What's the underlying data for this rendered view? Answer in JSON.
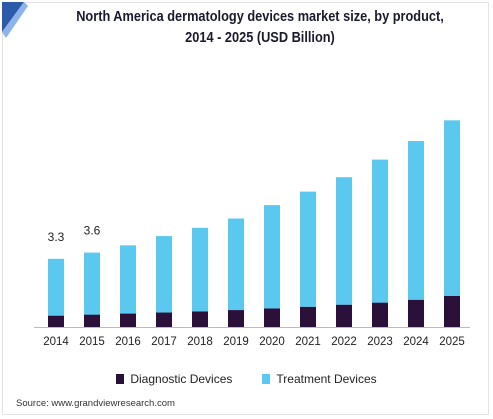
{
  "header": {
    "title_line1": "North America dermatology devices market size, by product,",
    "title_line2": "2014 - 2025 (USD Billion)"
  },
  "colors": {
    "diagnostic": "#2b1039",
    "treatment": "#5bc8ef",
    "accent_corner": "#2d5aa8"
  },
  "chart_data": {
    "type": "bar",
    "stacked": true,
    "categories": [
      "2014",
      "2015",
      "2016",
      "2017",
      "2018",
      "2019",
      "2020",
      "2021",
      "2022",
      "2023",
      "2024",
      "2025"
    ],
    "series": [
      {
        "name": "Diagnostic Devices",
        "values": [
          0.55,
          0.6,
          0.65,
          0.7,
          0.75,
          0.82,
          0.9,
          0.98,
          1.08,
          1.18,
          1.32,
          1.5
        ]
      },
      {
        "name": "Treatment Devices",
        "values": [
          2.75,
          3.0,
          3.3,
          3.7,
          4.05,
          4.43,
          5.0,
          5.57,
          6.17,
          6.92,
          7.68,
          8.5
        ]
      }
    ],
    "data_labels": [
      {
        "category": "2014",
        "text": "3.3"
      },
      {
        "category": "2015",
        "text": "3.6"
      }
    ],
    "ylim": [
      0,
      10.5
    ],
    "grid": false,
    "legend_position": "bottom"
  },
  "legend": {
    "diagnostic_label": "Diagnostic Devices",
    "treatment_label": "Treatment Devices"
  },
  "footer": {
    "source": "Source: www.grandviewresearch.com"
  }
}
